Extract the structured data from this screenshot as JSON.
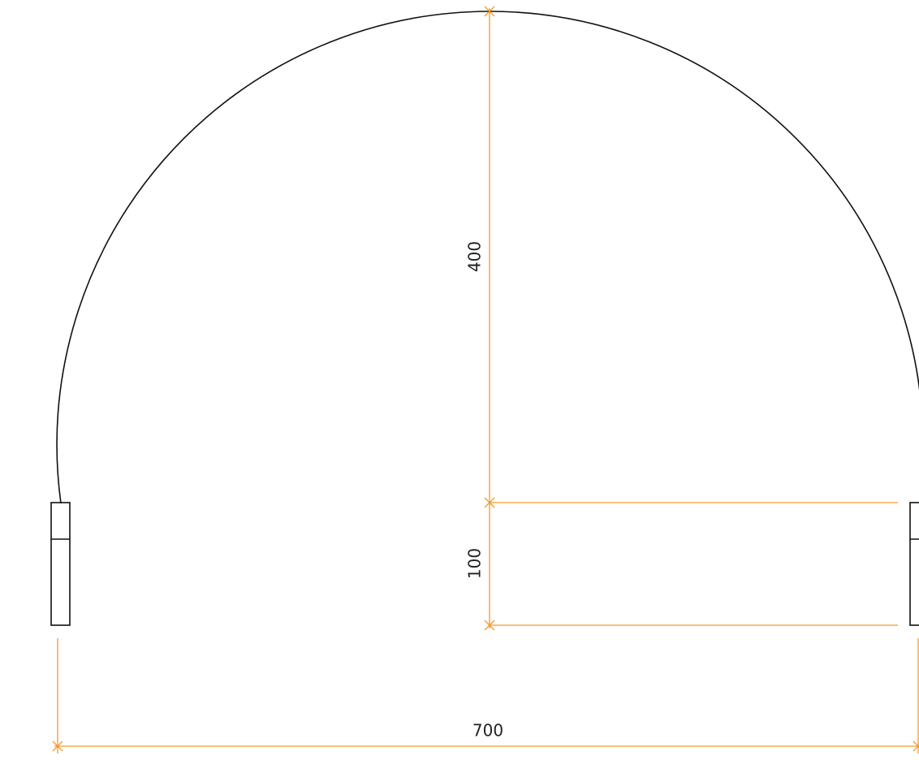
{
  "dimensions": [
    {
      "label": "400"
    },
    {
      "label": "100"
    },
    {
      "label": "700"
    }
  ]
}
